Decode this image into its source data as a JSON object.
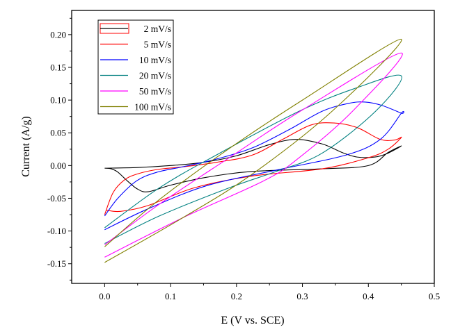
{
  "chart_data": {
    "type": "line",
    "title": "",
    "xlabel": "E (V vs. SCE)",
    "ylabel": "Current (A/g)",
    "xlim": [
      -0.05,
      0.5
    ],
    "ylim": [
      -0.18,
      0.237
    ],
    "xticks": [
      "0.0",
      "0.1",
      "0.2",
      "0.3",
      "0.4",
      "0.5"
    ],
    "xtick_values": [
      0,
      0.1,
      0.2,
      0.3,
      0.4,
      0.5
    ],
    "yticks": [
      "0.20",
      "0.15",
      "0.10",
      "0.05",
      "0.00",
      "-0.05",
      "-0.10",
      "-0.15"
    ],
    "ytick_values": [
      0.2,
      0.15,
      0.1,
      0.05,
      0,
      -0.05,
      -0.1,
      -0.15
    ],
    "grid": false,
    "legend_position": "top-left",
    "series": [
      {
        "name": "2 mV/s",
        "color": "#000000",
        "x": [
          0,
          0.05,
          0.1,
          0.15,
          0.2,
          0.25,
          0.29,
          0.33,
          0.36,
          0.383,
          0.41,
          0.43,
          0.45,
          0.43,
          0.4,
          0.33,
          0.224,
          0.154,
          0.1,
          0.066,
          0.05,
          0.034,
          0.02,
          0.01,
          0
        ],
        "y": [
          -0.004,
          -0.003,
          0.0,
          0.005,
          0.015,
          0.032,
          0.04,
          0.033,
          0.02,
          0.013,
          0.013,
          0.019,
          0.03,
          0.02,
          0.0,
          -0.005,
          -0.009,
          -0.018,
          -0.03,
          -0.04,
          -0.036,
          -0.023,
          -0.01,
          -0.005,
          -0.004
        ]
      },
      {
        "name": "5 mV/s",
        "color": "#ff0000",
        "x": [
          0,
          0.013,
          0.03,
          0.049,
          0.08,
          0.118,
          0.17,
          0.224,
          0.27,
          0.313,
          0.348,
          0.383,
          0.418,
          0.44,
          0.45,
          0.43,
          0.4,
          0.33,
          0.224,
          0.136,
          0.066,
          0.024,
          0.002
        ],
        "y": [
          -0.075,
          -0.041,
          -0.022,
          -0.013,
          -0.006,
          -0.002,
          0.005,
          0.016,
          0.04,
          0.062,
          0.065,
          0.058,
          0.04,
          0.039,
          0.043,
          0.025,
          0.012,
          -0.005,
          -0.016,
          -0.034,
          -0.061,
          -0.07,
          -0.068
        ]
      },
      {
        "name": "10 mV/s",
        "color": "#0000ff",
        "x": [
          0,
          0.02,
          0.049,
          0.08,
          0.118,
          0.17,
          0.224,
          0.28,
          0.33,
          0.37,
          0.395,
          0.42,
          0.45,
          0.45,
          0.418,
          0.366,
          0.26,
          0.154,
          0.066,
          0
        ],
        "y": [
          -0.077,
          -0.05,
          -0.023,
          -0.01,
          -0.002,
          0.01,
          0.027,
          0.055,
          0.083,
          0.095,
          0.097,
          0.092,
          0.08,
          0.08,
          0.04,
          0.016,
          -0.007,
          -0.031,
          -0.066,
          -0.098
        ]
      },
      {
        "name": "20 mV/s",
        "color": "#008080",
        "x": [
          0,
          0.083,
          0.171,
          0.295,
          0.38,
          0.45,
          0.411,
          0.33,
          0.26,
          0.189,
          0.083,
          0
        ],
        "y": [
          -0.095,
          -0.034,
          0.017,
          0.083,
          0.118,
          0.137,
          0.083,
          0.019,
          -0.009,
          -0.034,
          -0.077,
          -0.119
        ]
      },
      {
        "name": "50 mV/s",
        "color": "#ff00ff",
        "x": [
          0,
          0.083,
          0.189,
          0.3,
          0.45,
          0.376,
          0.295,
          0.242,
          0.118,
          0
        ],
        "y": [
          -0.121,
          -0.059,
          0.012,
          0.085,
          0.172,
          0.083,
          0.012,
          -0.023,
          -0.08,
          -0.14
        ]
      },
      {
        "name": "100 mV/s",
        "color": "#808000",
        "x": [
          0,
          0.083,
          0.189,
          0.3,
          0.45,
          0.345,
          0.224,
          0.118,
          0
        ],
        "y": [
          -0.124,
          -0.052,
          0.026,
          0.1,
          0.193,
          0.083,
          -0.013,
          -0.08,
          -0.148
        ]
      }
    ]
  }
}
